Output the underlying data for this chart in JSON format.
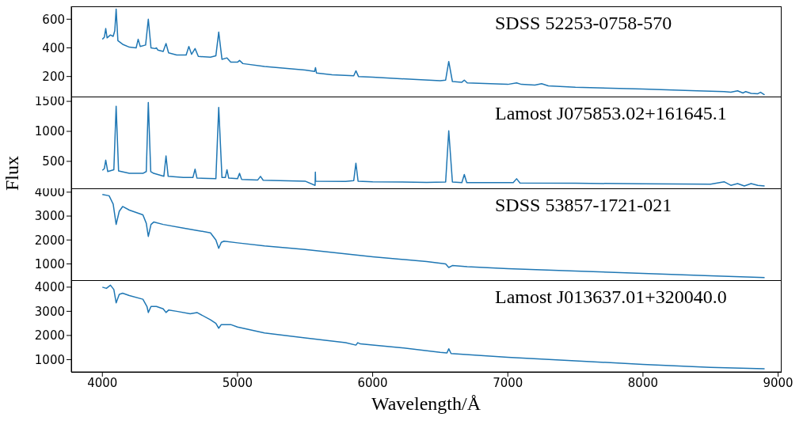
{
  "chart_data": [
    {
      "type": "line",
      "title": "SDSS 52253-0758-570",
      "color": "#1f77b4",
      "xlim": [
        3770,
        9020
      ],
      "ylim": [
        60,
        690
      ],
      "yticks": [
        200,
        400,
        600
      ],
      "tick_labels": "y",
      "x": [
        4000,
        4015,
        4025,
        4035,
        4060,
        4080,
        4092,
        4102,
        4115,
        4150,
        4200,
        4250,
        4265,
        4280,
        4320,
        4340,
        4360,
        4390,
        4400,
        4410,
        4450,
        4471,
        4490,
        4550,
        4620,
        4640,
        4660,
        4686,
        4710,
        4800,
        4840,
        4861,
        4885,
        4922,
        4950,
        5000,
        5015,
        5040,
        5200,
        5500,
        5570,
        5577,
        5584,
        5700,
        5860,
        5876,
        5895,
        6000,
        6300,
        6500,
        6540,
        6563,
        6590,
        6660,
        6678,
        6700,
        7000,
        7065,
        7100,
        7200,
        7250,
        7300,
        7500,
        8000,
        8400,
        8600,
        8650,
        8700,
        8740,
        8760,
        8800,
        8850,
        8870,
        8900
      ],
      "values": [
        460,
        475,
        535,
        470,
        490,
        480,
        520,
        670,
        450,
        425,
        405,
        400,
        460,
        410,
        420,
        600,
        400,
        395,
        400,
        385,
        375,
        430,
        365,
        350,
        350,
        410,
        355,
        395,
        340,
        335,
        345,
        510,
        320,
        330,
        300,
        300,
        312,
        290,
        270,
        245,
        235,
        262,
        225,
        212,
        205,
        240,
        200,
        195,
        180,
        170,
        175,
        305,
        165,
        160,
        175,
        155,
        145,
        155,
        145,
        140,
        150,
        135,
        125,
        112,
        100,
        95,
        90,
        100,
        85,
        95,
        82,
        80,
        90,
        72
      ]
    },
    {
      "type": "line",
      "title": "Lamost J075853.02+161645.1",
      "ylabel": "Flux",
      "color": "#1f77b4",
      "xlim": [
        3770,
        9020
      ],
      "ylim": [
        50,
        1580
      ],
      "yticks": [
        500,
        1000,
        1500
      ],
      "tick_labels": "y",
      "x": [
        4000,
        4015,
        4025,
        4040,
        4085,
        4102,
        4120,
        4200,
        4300,
        4325,
        4340,
        4358,
        4380,
        4455,
        4471,
        4487,
        4600,
        4670,
        4686,
        4700,
        4840,
        4861,
        4885,
        4910,
        4922,
        4935,
        5000,
        5015,
        5030,
        5150,
        5170,
        5190,
        5500,
        5574,
        5576,
        5578,
        5580,
        5800,
        5860,
        5876,
        5892,
        6000,
        6400,
        6540,
        6563,
        6590,
        6660,
        6678,
        6696,
        7040,
        7065,
        7090,
        7500,
        8000,
        8500,
        8600,
        8650,
        8700,
        8750,
        8800,
        8850,
        8900
      ],
      "values": [
        350,
        380,
        520,
        330,
        360,
        1420,
        340,
        300,
        300,
        330,
        1480,
        330,
        300,
        250,
        590,
        250,
        230,
        230,
        370,
        220,
        210,
        1400,
        230,
        230,
        360,
        220,
        210,
        300,
        200,
        190,
        250,
        185,
        170,
        100,
        320,
        170,
        170,
        165,
        180,
        470,
        170,
        160,
        150,
        155,
        1010,
        155,
        145,
        280,
        145,
        145,
        210,
        140,
        135,
        125,
        120,
        160,
        100,
        130,
        90,
        130,
        100,
        90
      ]
    },
    {
      "type": "line",
      "title": "SDSS 53857-1721-021",
      "color": "#1f77b4",
      "xlim": [
        3770,
        9020
      ],
      "ylim": [
        320,
        4160
      ],
      "yticks": [
        1000,
        2000,
        3000,
        4000
      ],
      "tick_labels": "y",
      "x": [
        4000,
        4050,
        4080,
        4102,
        4125,
        4150,
        4200,
        4300,
        4325,
        4340,
        4360,
        4380,
        4450,
        4600,
        4700,
        4800,
        4840,
        4861,
        4880,
        4900,
        5000,
        5200,
        5500,
        6000,
        6400,
        6540,
        6563,
        6590,
        6700,
        7000,
        7500,
        8000,
        8500,
        8900
      ],
      "values": [
        3900,
        3850,
        3500,
        2650,
        3200,
        3400,
        3250,
        3050,
        2700,
        2150,
        2650,
        2750,
        2650,
        2500,
        2400,
        2300,
        2000,
        1650,
        1900,
        1950,
        1880,
        1750,
        1600,
        1300,
        1100,
        1000,
        850,
        930,
        880,
        800,
        700,
        600,
        500,
        430
      ]
    },
    {
      "type": "line",
      "title": "Lamost J013637.01+320040.0",
      "xlabel": "Wavelength/Å",
      "color": "#1f77b4",
      "xlim": [
        3770,
        9020
      ],
      "ylim": [
        490,
        4290
      ],
      "xticks": [
        4000,
        5000,
        6000,
        7000,
        8000,
        9000
      ],
      "yticks": [
        1000,
        2000,
        3000,
        4000
      ],
      "x": [
        4000,
        4030,
        4060,
        4085,
        4102,
        4125,
        4150,
        4200,
        4300,
        4330,
        4340,
        4360,
        4400,
        4450,
        4471,
        4490,
        4550,
        4650,
        4700,
        4800,
        4840,
        4861,
        4880,
        4950,
        5000,
        5200,
        5500,
        5800,
        5876,
        5890,
        5910,
        6000,
        6200,
        6500,
        6550,
        6563,
        6580,
        7000,
        7500,
        8000,
        8500,
        8900
      ],
      "values": [
        4000,
        3950,
        4080,
        3900,
        3350,
        3700,
        3750,
        3650,
        3500,
        3200,
        2950,
        3200,
        3200,
        3100,
        2950,
        3050,
        3000,
        2900,
        2950,
        2650,
        2500,
        2300,
        2450,
        2450,
        2350,
        2100,
        1900,
        1700,
        1600,
        1700,
        1650,
        1600,
        1500,
        1300,
        1280,
        1450,
        1250,
        1100,
        950,
        800,
        680,
        620
      ]
    }
  ]
}
